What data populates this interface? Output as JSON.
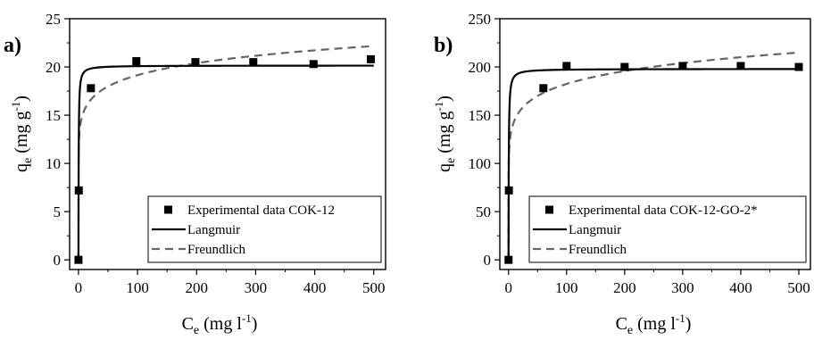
{
  "chart_data": [
    {
      "type": "scatter",
      "panel_label": "a)",
      "xlabel": {
        "main": "C",
        "sub": "e",
        "units_pre": " (mg l",
        "sup": "-1",
        "units_post": ")"
      },
      "ylabel": {
        "main": "q",
        "sub": "e",
        "units_pre": " (mg g",
        "sup": "-1",
        "units_post": ")"
      },
      "xlim": [
        -15,
        520
      ],
      "ylim": [
        -1,
        25
      ],
      "xticks": [
        0,
        100,
        200,
        300,
        400,
        500
      ],
      "yticks": [
        0,
        5,
        10,
        15,
        20,
        25
      ],
      "grid": false,
      "legend_position": "bottom-right",
      "series": [
        {
          "name": "Experimental data COK-12",
          "style": "markers",
          "color": "#000000",
          "x": [
            0,
            0.5,
            21,
            98,
            198,
            296,
            398,
            495
          ],
          "y": [
            0,
            7.2,
            17.8,
            20.6,
            20.5,
            20.5,
            20.3,
            20.8
          ]
        },
        {
          "name": "Langmuir",
          "style": "solid",
          "color": "#000000",
          "qmax": 20.15,
          "K": 3.0
        },
        {
          "name": "Freundlich",
          "style": "dashed",
          "color": "#666666",
          "Kf": 12.6,
          "n": 11
        }
      ]
    },
    {
      "type": "scatter",
      "panel_label": "b)",
      "xlabel": {
        "main": "C",
        "sub": "e",
        "units_pre": " (mg l",
        "sup": "-1",
        "units_post": ")"
      },
      "ylabel": {
        "main": "q",
        "sub": "e",
        "units_pre": " (mg g",
        "sup": "-1",
        "units_post": ")"
      },
      "xlim": [
        -15,
        520
      ],
      "ylim": [
        -10,
        250
      ],
      "xticks": [
        0,
        100,
        200,
        300,
        400,
        500
      ],
      "yticks": [
        0,
        50,
        100,
        150,
        200,
        250
      ],
      "grid": false,
      "legend_position": "bottom-right",
      "series": [
        {
          "name": "Experimental data COK-12-GO-2*",
          "style": "markers",
          "color": "#000000",
          "x": [
            0,
            0.6,
            60,
            100,
            200,
            300,
            400,
            500
          ],
          "y": [
            0,
            72,
            178,
            201,
            200,
            201,
            201,
            200
          ]
        },
        {
          "name": "Langmuir",
          "style": "solid",
          "color": "#000000",
          "qmax": 198,
          "K": 2.4
        },
        {
          "name": "Freundlich",
          "style": "dashed",
          "color": "#666666",
          "Kf": 114,
          "n": 9.8
        }
      ]
    }
  ]
}
